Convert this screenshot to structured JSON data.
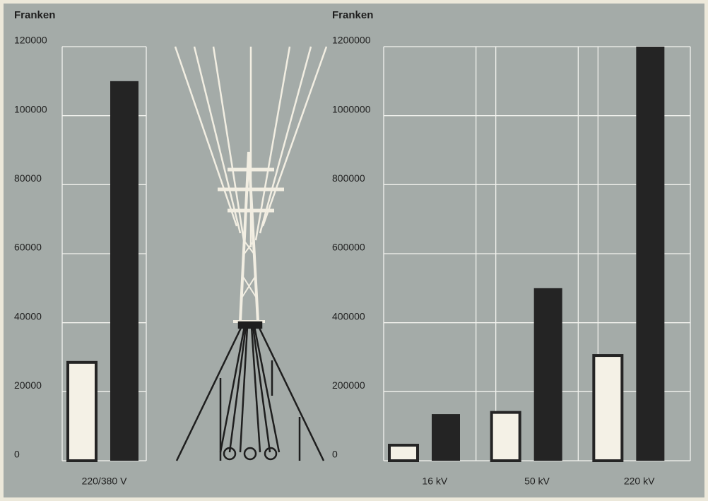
{
  "chart_data": [
    {
      "type": "bar",
      "y_label": "Franken",
      "categories": [
        "220/380 V"
      ],
      "series": [
        {
          "color": "#f4f1e6",
          "values": [
            28500
          ]
        },
        {
          "color": "#242424",
          "values": [
            110000
          ]
        }
      ],
      "ylim": [
        0,
        120000
      ],
      "yticks": [
        0,
        20000,
        40000,
        60000,
        80000,
        100000,
        120000
      ],
      "grid": true
    },
    {
      "type": "bar",
      "y_label": "Franken",
      "categories": [
        "16 kV",
        "50 kV",
        "220 kV"
      ],
      "series": [
        {
          "color": "#f4f1e6",
          "values": [
            45000,
            140000,
            305000
          ]
        },
        {
          "color": "#242424",
          "values": [
            135000,
            500000,
            1200000
          ]
        }
      ],
      "ylim": [
        0,
        1200000
      ],
      "yticks": [
        0,
        200000,
        400000,
        600000,
        800000,
        1000000,
        1200000
      ],
      "grid": true
    }
  ]
}
